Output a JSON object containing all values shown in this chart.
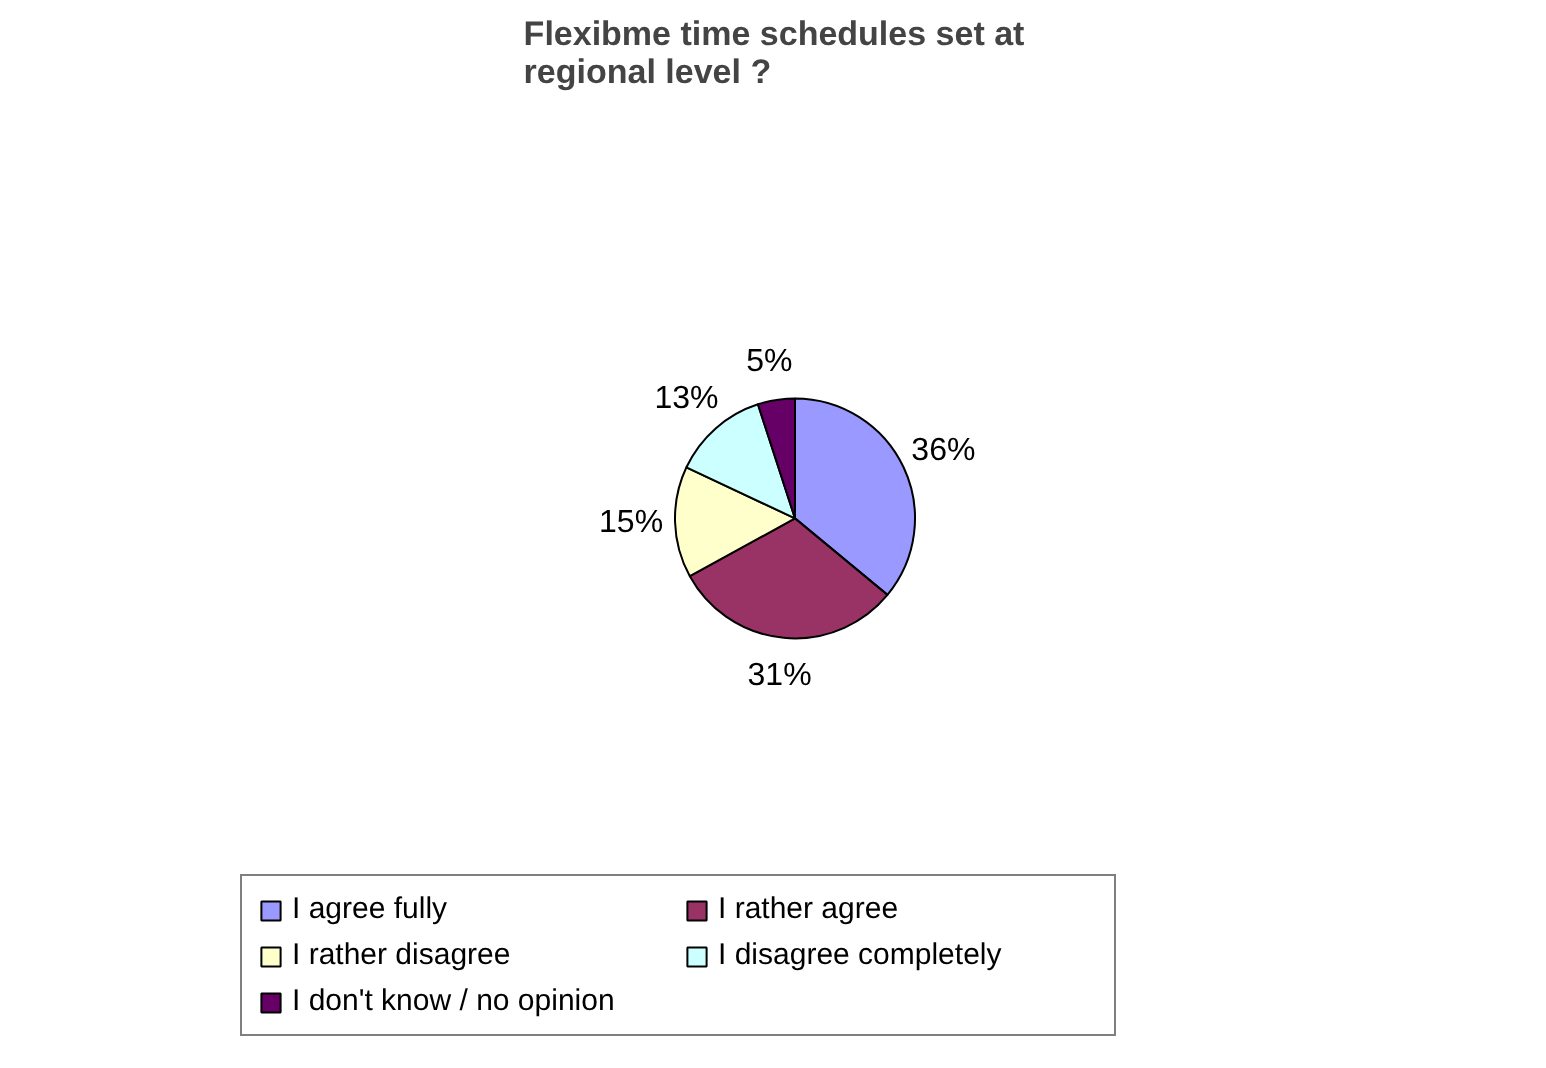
{
  "chart_data": {
    "type": "pie",
    "title": "Flexibme time schedules set at\nregional level ?",
    "categories": [
      "I agree fully",
      "I rather agree",
      "I rather disagree",
      "I disagree completely",
      "I don't know / no opinion"
    ],
    "values": [
      36,
      31,
      15,
      13,
      5
    ],
    "value_labels": [
      "36%",
      "31%",
      "15%",
      "13%",
      "5%"
    ],
    "colors": [
      "#9999ff",
      "#993366",
      "#ffffcc",
      "#ccffff",
      "#660066"
    ],
    "legend": "bottom"
  }
}
